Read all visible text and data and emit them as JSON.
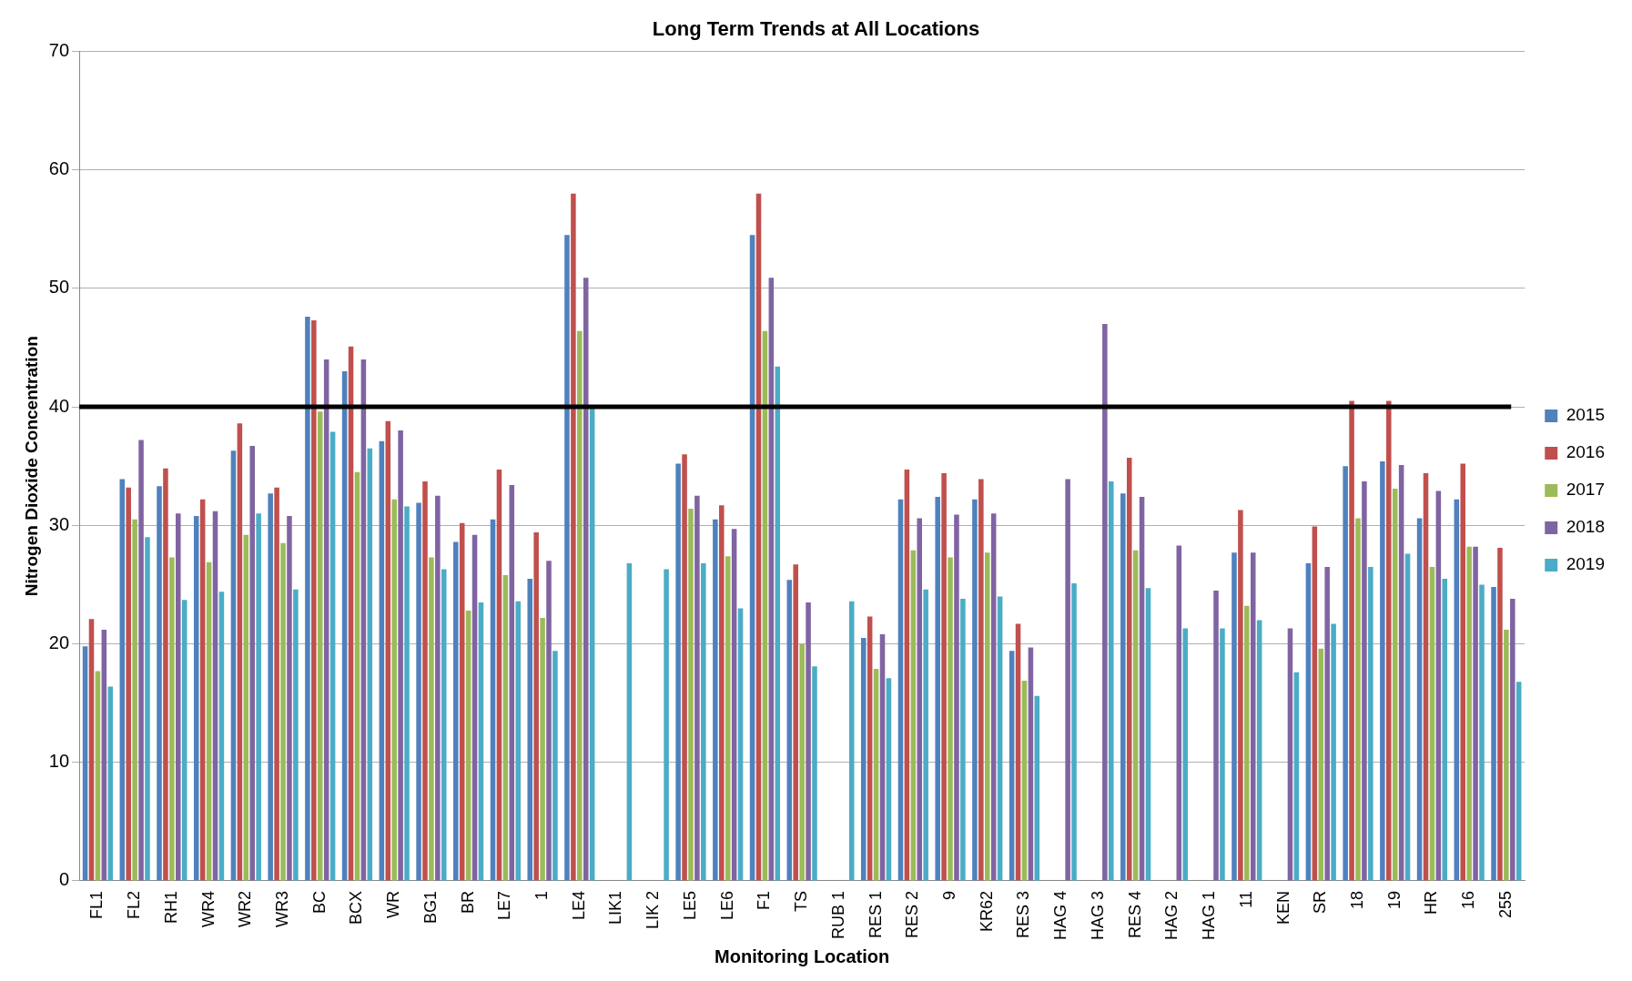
{
  "chart_data": {
    "type": "bar",
    "title": "Long Term Trends at All Locations",
    "xlabel": "Monitoring Location",
    "ylabel": "Nitrogen Dioxide Concentration",
    "categories": [
      "FL1",
      "FL2",
      "RH1",
      "WR4",
      "WR2",
      "WR3",
      "BC",
      "BCX",
      "WR",
      "BG1",
      "BR",
      "LE7",
      "1",
      "LE4",
      "LIK1",
      "LIK 2",
      "LE5",
      "LE6",
      "F1",
      "TS",
      "RUB 1",
      "RES 1",
      "RES 2",
      "9",
      "KR62",
      "RES 3",
      "HAG 4",
      "HAG 3",
      "RES 4",
      "HAG 2",
      "HAG 1",
      "11",
      "KEN",
      "SR",
      "18",
      "19",
      "HR",
      "16",
      "255"
    ],
    "series": [
      {
        "name": "2015",
        "color": "#4f81bd",
        "values": [
          19.8,
          33.9,
          33.3,
          30.8,
          36.3,
          32.7,
          47.6,
          43.0,
          37.1,
          31.9,
          28.6,
          30.5,
          25.5,
          54.5,
          null,
          null,
          35.2,
          30.5,
          54.5,
          25.4,
          null,
          20.5,
          32.2,
          32.4,
          32.2,
          19.4,
          null,
          null,
          32.7,
          null,
          null,
          27.7,
          null,
          26.8,
          35.0,
          35.4,
          30.6,
          32.2,
          24.8
        ]
      },
      {
        "name": "2016",
        "color": "#c0504d",
        "values": [
          22.1,
          33.2,
          34.8,
          32.2,
          38.6,
          33.2,
          47.3,
          45.1,
          38.8,
          33.7,
          30.2,
          34.7,
          29.4,
          58.0,
          null,
          null,
          36.0,
          31.7,
          58.0,
          26.7,
          null,
          22.3,
          34.7,
          34.4,
          33.9,
          21.7,
          null,
          null,
          35.7,
          null,
          null,
          31.3,
          null,
          29.9,
          40.5,
          40.5,
          34.4,
          35.2,
          28.1
        ]
      },
      {
        "name": "2017",
        "color": "#9bbb59",
        "values": [
          17.7,
          30.5,
          27.3,
          26.9,
          29.2,
          28.5,
          39.6,
          34.5,
          32.2,
          27.3,
          22.8,
          25.8,
          22.2,
          46.4,
          null,
          null,
          31.4,
          27.4,
          46.4,
          20.0,
          null,
          17.9,
          27.9,
          27.3,
          27.7,
          16.9,
          null,
          null,
          27.9,
          null,
          null,
          23.2,
          null,
          19.6,
          30.6,
          33.1,
          26.5,
          28.2,
          21.2
        ]
      },
      {
        "name": "2018",
        "color": "#8064a2",
        "values": [
          21.2,
          37.2,
          31.0,
          31.2,
          36.7,
          30.8,
          44.0,
          44.0,
          38.0,
          32.5,
          29.2,
          33.4,
          27.0,
          50.9,
          null,
          null,
          32.5,
          29.7,
          50.9,
          23.5,
          null,
          20.8,
          30.6,
          30.9,
          31.0,
          19.7,
          33.9,
          47.0,
          32.4,
          28.3,
          24.5,
          27.7,
          21.3,
          26.5,
          33.7,
          35.1,
          32.9,
          28.2,
          23.8
        ]
      },
      {
        "name": "2019",
        "color": "#4bacc6",
        "values": [
          16.4,
          29.0,
          23.7,
          24.4,
          31.0,
          24.6,
          37.9,
          36.5,
          31.6,
          26.3,
          23.5,
          23.6,
          19.4,
          40.0,
          26.8,
          26.3,
          26.8,
          23.0,
          43.4,
          18.1,
          23.6,
          17.1,
          24.6,
          23.8,
          24.0,
          15.6,
          25.1,
          33.7,
          24.7,
          21.3,
          21.3,
          22.0,
          17.6,
          21.7,
          26.5,
          27.6,
          25.5,
          25.0,
          16.8
        ]
      }
    ],
    "ylim": [
      0,
      70
    ],
    "yticks": [
      0,
      10,
      20,
      30,
      40,
      50,
      60,
      70
    ],
    "grid": "y",
    "legend": "right",
    "ref_lines": [
      {
        "axis": "y",
        "value": 40,
        "color": "#000000"
      }
    ]
  }
}
